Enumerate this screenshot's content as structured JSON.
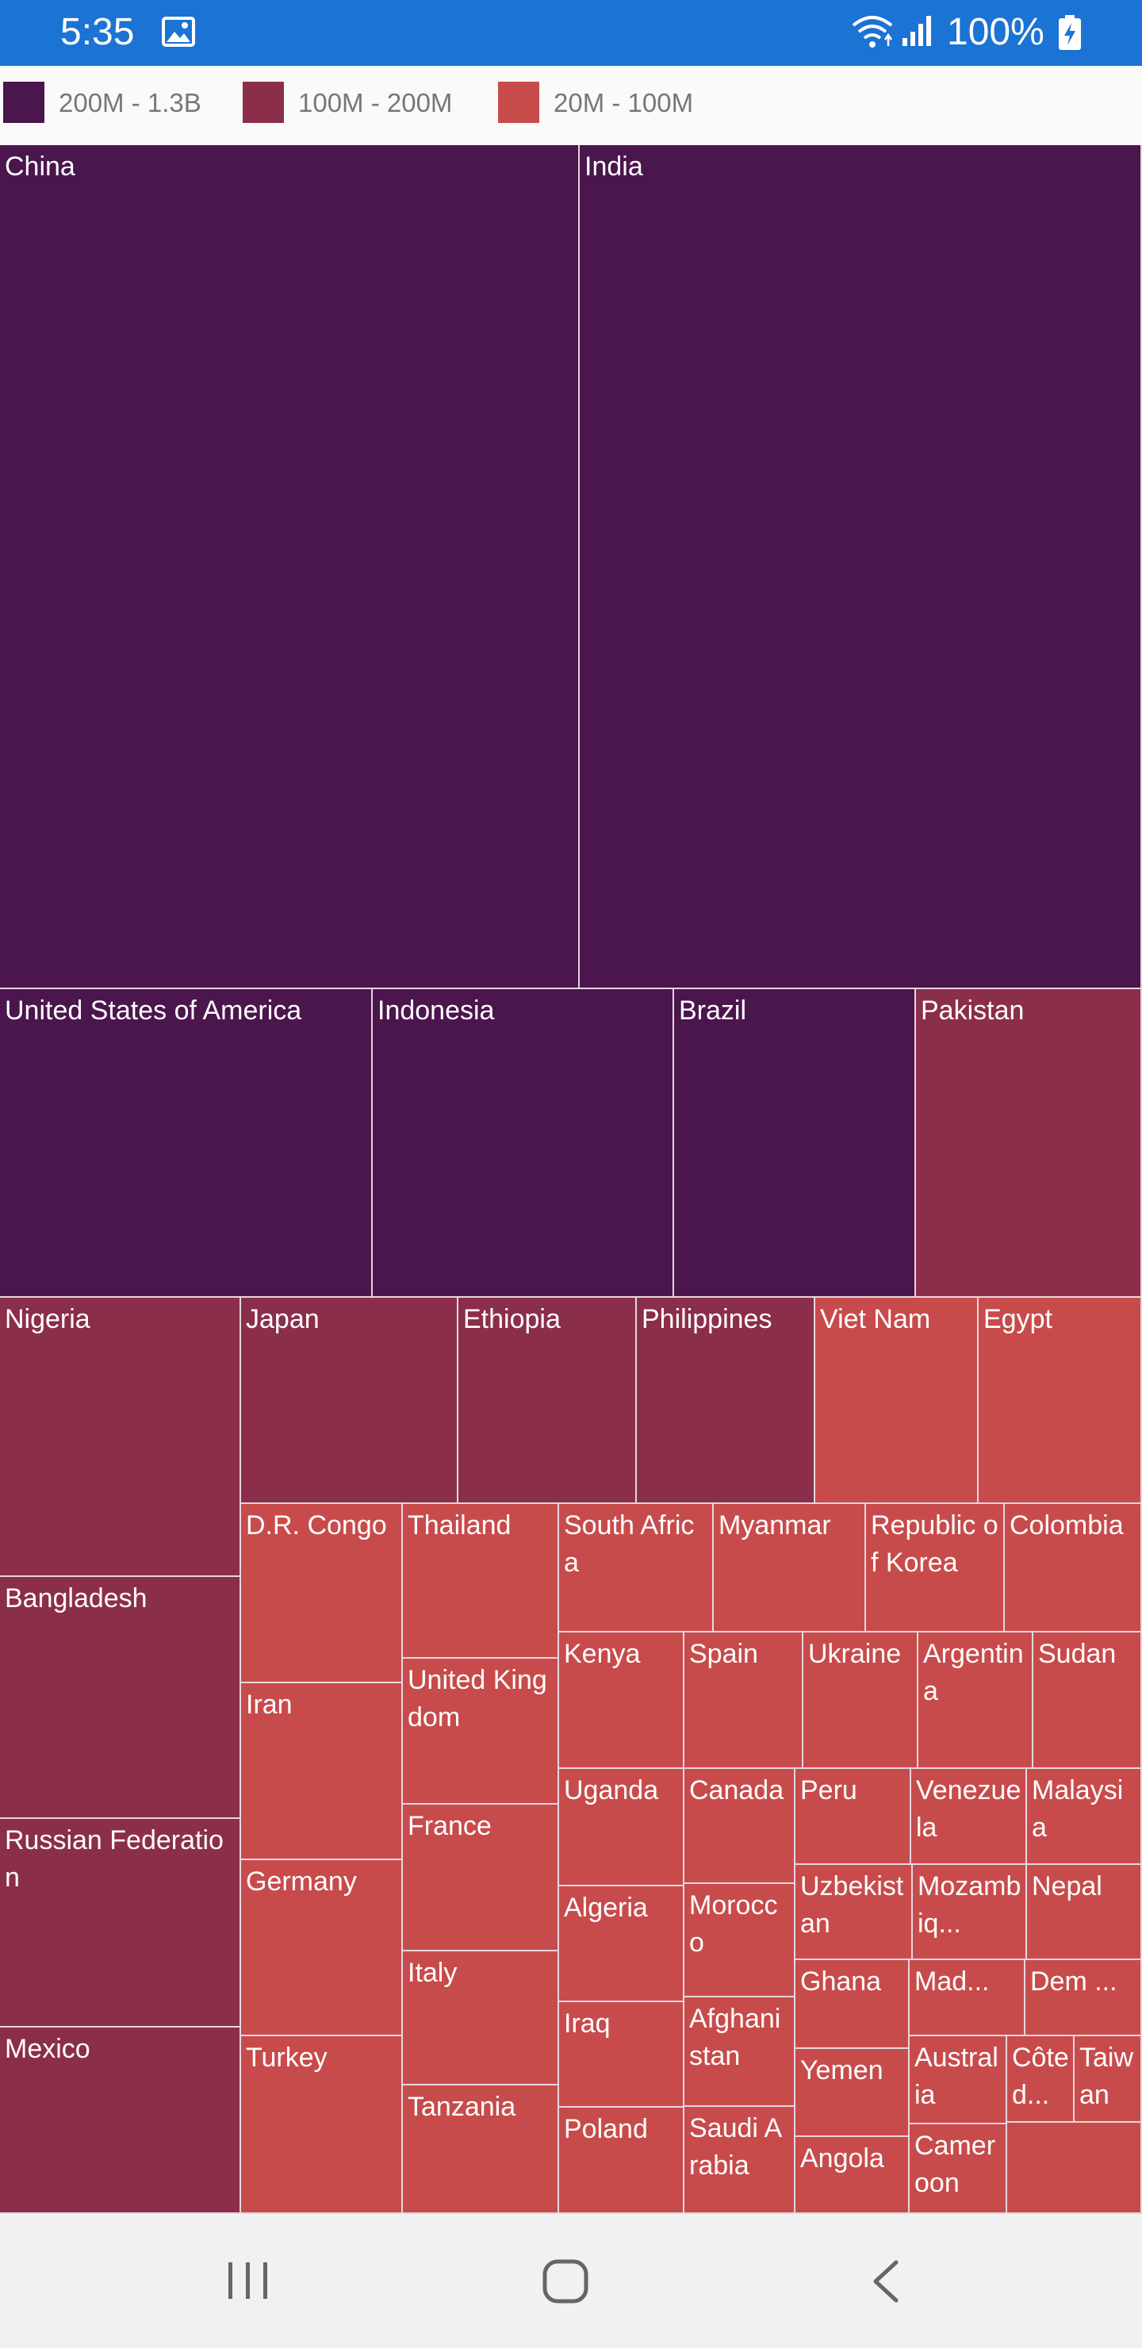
{
  "status_bar": {
    "time": "5:35",
    "battery": "100%",
    "background": "#1b73d4",
    "icons": [
      "image-icon",
      "wifi-icon",
      "signal-icon",
      "battery-charging-icon"
    ]
  },
  "navigation": {
    "icons": [
      "recent-apps-icon",
      "home-icon",
      "back-icon"
    ]
  },
  "chart_data": {
    "type": "treemap",
    "legend_position": "top-left",
    "legend": [
      {
        "label": "200M - 1.3B",
        "color": "#4b154d"
      },
      {
        "label": "100M - 200M",
        "color": "#8b2e4a"
      },
      {
        "label": "20M - 100M",
        "color": "#c84b4b"
      }
    ],
    "items": [
      {
        "label": "China",
        "range": 0
      },
      {
        "label": "India",
        "range": 0
      },
      {
        "label": "United States of America",
        "range": 0
      },
      {
        "label": "Indonesia",
        "range": 0
      },
      {
        "label": "Brazil",
        "range": 0
      },
      {
        "label": "Pakistan",
        "range": 1
      },
      {
        "label": "Nigeria",
        "range": 1
      },
      {
        "label": "Bangladesh",
        "range": 1
      },
      {
        "label": "Russian Federation",
        "range": 1
      },
      {
        "label": "Mexico",
        "range": 1
      },
      {
        "label": "Japan",
        "range": 1
      },
      {
        "label": "Ethiopia",
        "range": 1
      },
      {
        "label": "Philippines",
        "range": 1
      },
      {
        "label": "Viet Nam",
        "range": 2
      },
      {
        "label": "Egypt",
        "range": 2
      },
      {
        "label": "D.R. Congo",
        "range": 2
      },
      {
        "label": "Iran",
        "range": 2
      },
      {
        "label": "Germany",
        "range": 2
      },
      {
        "label": "Turkey",
        "range": 2
      },
      {
        "label": "Thailand",
        "range": 2
      },
      {
        "label": "United Kingdom",
        "range": 2
      },
      {
        "label": "France",
        "range": 2
      },
      {
        "label": "Italy",
        "range": 2
      },
      {
        "label": "Tanzania",
        "range": 2
      },
      {
        "label": "South Africa",
        "range": 2
      },
      {
        "label": "Myanmar",
        "range": 2
      },
      {
        "label": "Republic of Korea",
        "range": 2
      },
      {
        "label": "Colombia",
        "range": 2
      },
      {
        "label": "Kenya",
        "range": 2
      },
      {
        "label": "Spain",
        "range": 2
      },
      {
        "label": "Ukraine",
        "range": 2
      },
      {
        "label": "Argentina",
        "range": 2
      },
      {
        "label": "Sudan",
        "range": 2
      },
      {
        "label": "Uganda",
        "range": 2
      },
      {
        "label": "Algeria",
        "range": 2
      },
      {
        "label": "Iraq",
        "range": 2
      },
      {
        "label": "Poland",
        "range": 2
      },
      {
        "label": "Canada",
        "range": 2
      },
      {
        "label": "Morocco",
        "range": 2
      },
      {
        "label": "Afghanistan",
        "range": 2
      },
      {
        "label": "Saudi Arabia",
        "range": 2
      },
      {
        "label": "Peru",
        "range": 2
      },
      {
        "label": "Venezuela",
        "range": 2
      },
      {
        "label": "Malaysia",
        "range": 2
      },
      {
        "label": "Uzbekistan",
        "range": 2
      },
      {
        "label": "Mozambiq...",
        "range": 2
      },
      {
        "label": "Nepal",
        "range": 2
      },
      {
        "label": "Ghana",
        "range": 2
      },
      {
        "label": "Mad...",
        "range": 2
      },
      {
        "label": "Dem ...",
        "range": 2
      },
      {
        "label": "Yemen",
        "range": 2
      },
      {
        "label": "Angola",
        "range": 2
      },
      {
        "label": "Australia",
        "range": 2
      },
      {
        "label": "Cameroon",
        "range": 2
      },
      {
        "label": "Côte d...",
        "range": 2
      },
      {
        "label": "Taiwan",
        "range": 2
      },
      {
        "label": "",
        "range": 2
      }
    ]
  }
}
